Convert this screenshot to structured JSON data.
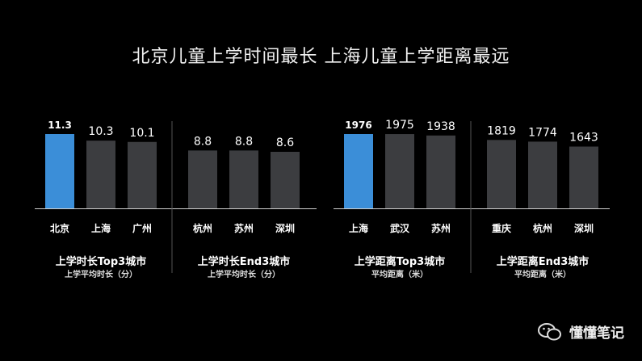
{
  "title": "北京儿童上学时间最长  上海儿童上学距离最远",
  "watermark": "懂懂笔记",
  "colors": {
    "highlight": "#3b8ed8",
    "bar": "#3c3d40",
    "divider": "#555555",
    "background": "#000000"
  },
  "chart_data": [
    {
      "type": "bar",
      "title": "上学时长Top3城市",
      "subtitle": "上学平均时长（分）",
      "categories": [
        "北京",
        "上海",
        "广州"
      ],
      "values": [
        11.3,
        10.3,
        10.1
      ],
      "value_labels": [
        "11.3",
        "10.3",
        "10.1"
      ],
      "highlight_index": 0
    },
    {
      "type": "bar",
      "title": "上学时长End3城市",
      "subtitle": "上学平均时长（分）",
      "categories": [
        "杭州",
        "苏州",
        "深圳"
      ],
      "values": [
        8.8,
        8.8,
        8.6
      ],
      "value_labels": [
        "8.8",
        "8.8",
        "8.6"
      ],
      "highlight_index": -1
    },
    {
      "type": "bar",
      "title": "上学距离Top3城市",
      "subtitle": "平均距离（米）",
      "categories": [
        "上海",
        "武汉",
        "苏州"
      ],
      "values": [
        1976,
        1975,
        1938
      ],
      "value_labels": [
        "1976",
        "1975",
        "1938"
      ],
      "highlight_index": 0
    },
    {
      "type": "bar",
      "title": "上学距离End3城市",
      "subtitle": "平均距离（米）",
      "categories": [
        "重庆",
        "杭州",
        "深圳"
      ],
      "values": [
        1819,
        1774,
        1643
      ],
      "value_labels": [
        "1819",
        "1774",
        "1643"
      ],
      "highlight_index": -1
    }
  ]
}
